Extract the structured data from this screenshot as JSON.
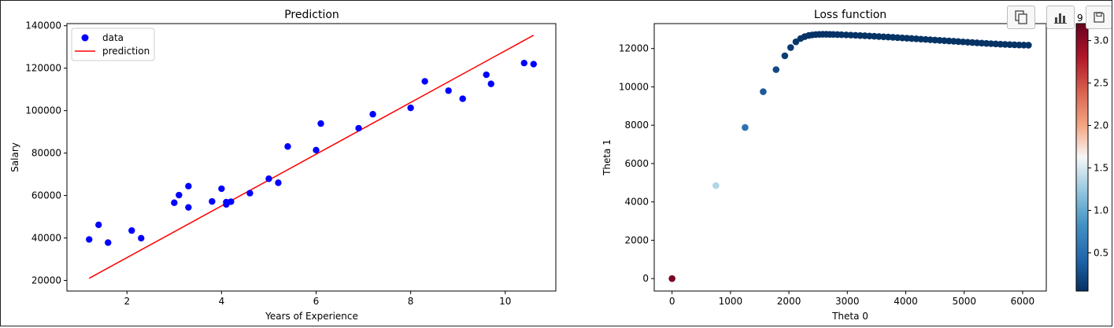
{
  "chart_data": [
    {
      "type": "scatter",
      "title": "Prediction",
      "xlabel": "Years of Experience",
      "ylabel": "Salary",
      "xlim": [
        0.73,
        11.07
      ],
      "ylim": [
        15000,
        141000
      ],
      "xticks": [
        2,
        4,
        6,
        8,
        10
      ],
      "yticks": [
        20000,
        40000,
        60000,
        80000,
        100000,
        120000,
        140000
      ],
      "legend": {
        "placement": "upper-left",
        "entries": [
          "data",
          "prediction"
        ]
      },
      "grid": false,
      "series": [
        {
          "name": "data",
          "kind": "scatter",
          "color": "#0000ff",
          "points": [
            [
              1.2,
              39300
            ],
            [
              1.4,
              46200
            ],
            [
              1.6,
              37800
            ],
            [
              2.1,
              43500
            ],
            [
              2.3,
              39900
            ],
            [
              3.0,
              56600
            ],
            [
              3.1,
              60200
            ],
            [
              3.3,
              64400
            ],
            [
              3.3,
              54400
            ],
            [
              3.8,
              57200
            ],
            [
              4.0,
              63200
            ],
            [
              4.1,
              55800
            ],
            [
              4.1,
              56900
            ],
            [
              4.2,
              57100
            ],
            [
              4.6,
              61100
            ],
            [
              5.0,
              67900
            ],
            [
              5.2,
              66000
            ],
            [
              5.4,
              83100
            ],
            [
              6.0,
              81400
            ],
            [
              6.1,
              93900
            ],
            [
              6.9,
              91700
            ],
            [
              7.2,
              98300
            ],
            [
              8.0,
              101300
            ],
            [
              8.3,
              113800
            ],
            [
              8.8,
              109400
            ],
            [
              9.1,
              105600
            ],
            [
              9.6,
              116900
            ],
            [
              9.7,
              112600
            ],
            [
              10.4,
              122400
            ],
            [
              10.6,
              121900
            ]
          ]
        },
        {
          "name": "prediction",
          "kind": "line",
          "color": "#ff0000",
          "points": [
            [
              1.2,
              21000
            ],
            [
              10.6,
              135500
            ]
          ]
        }
      ]
    },
    {
      "type": "scatter",
      "title": "Loss function",
      "xlabel": "Theta 0",
      "ylabel": "Theta 1",
      "xlim": [
        -305,
        6405
      ],
      "ylim": [
        -650,
        13300
      ],
      "xticks": [
        0,
        1000,
        2000,
        3000,
        4000,
        5000,
        6000
      ],
      "yticks": [
        0,
        2000,
        4000,
        6000,
        8000,
        10000,
        12000
      ],
      "grid": false,
      "colormap": "RdBu_r",
      "colorbar": {
        "min": 0.05,
        "max": 3.2,
        "ticks": [
          0.5,
          1.0,
          1.5,
          2.0,
          2.5,
          3.0
        ],
        "partial_top_label": "9"
      },
      "points": [
        [
          0,
          0,
          3.1
        ],
        [
          750,
          4850,
          1.35
        ],
        [
          1250,
          7880,
          0.55
        ],
        [
          1560,
          9750,
          0.35
        ],
        [
          1780,
          10900,
          0.22
        ],
        [
          1930,
          11620,
          0.15
        ],
        [
          2030,
          12050,
          0.12
        ],
        [
          2120,
          12350,
          0.1
        ],
        [
          2200,
          12520,
          0.09
        ],
        [
          2270,
          12620,
          0.08
        ],
        [
          2340,
          12680,
          0.07
        ],
        [
          2400,
          12710,
          0.07
        ],
        [
          2460,
          12730,
          0.07
        ],
        [
          2520,
          12740,
          0.07
        ],
        [
          2580,
          12745,
          0.07
        ],
        [
          2640,
          12745,
          0.07
        ],
        [
          2700,
          12740,
          0.07
        ],
        [
          2760,
          12735,
          0.07
        ],
        [
          2830,
          12728,
          0.07
        ],
        [
          2900,
          12720,
          0.07
        ],
        [
          2980,
          12710,
          0.07
        ],
        [
          3060,
          12700,
          0.07
        ],
        [
          3140,
          12690,
          0.07
        ],
        [
          3220,
          12678,
          0.07
        ],
        [
          3300,
          12666,
          0.07
        ],
        [
          3380,
          12653,
          0.07
        ],
        [
          3460,
          12640,
          0.07
        ],
        [
          3540,
          12626,
          0.07
        ],
        [
          3620,
          12612,
          0.07
        ],
        [
          3700,
          12598,
          0.07
        ],
        [
          3780,
          12583,
          0.07
        ],
        [
          3860,
          12568,
          0.07
        ],
        [
          3940,
          12553,
          0.07
        ],
        [
          4020,
          12538,
          0.07
        ],
        [
          4100,
          12522,
          0.07
        ],
        [
          4180,
          12506,
          0.07
        ],
        [
          4260,
          12490,
          0.07
        ],
        [
          4340,
          12474,
          0.07
        ],
        [
          4420,
          12458,
          0.07
        ],
        [
          4500,
          12442,
          0.07
        ],
        [
          4580,
          12426,
          0.07
        ],
        [
          4660,
          12410,
          0.07
        ],
        [
          4740,
          12394,
          0.07
        ],
        [
          4820,
          12378,
          0.07
        ],
        [
          4900,
          12362,
          0.07
        ],
        [
          4980,
          12346,
          0.07
        ],
        [
          5060,
          12330,
          0.07
        ],
        [
          5140,
          12314,
          0.07
        ],
        [
          5220,
          12298,
          0.07
        ],
        [
          5300,
          12283,
          0.07
        ],
        [
          5380,
          12268,
          0.07
        ],
        [
          5460,
          12254,
          0.07
        ],
        [
          5540,
          12240,
          0.07
        ],
        [
          5620,
          12227,
          0.07
        ],
        [
          5700,
          12215,
          0.07
        ],
        [
          5780,
          12204,
          0.07
        ],
        [
          5860,
          12194,
          0.07
        ],
        [
          5940,
          12186,
          0.07
        ],
        [
          6020,
          12180,
          0.07
        ],
        [
          6100,
          12175,
          0.07
        ]
      ]
    }
  ],
  "toolbar": [
    {
      "name": "copy-button",
      "icon": "copy-icon"
    },
    {
      "name": "chart-button",
      "icon": "bar-chart-icon"
    },
    {
      "name": "save-button",
      "icon": "save-icon"
    }
  ]
}
